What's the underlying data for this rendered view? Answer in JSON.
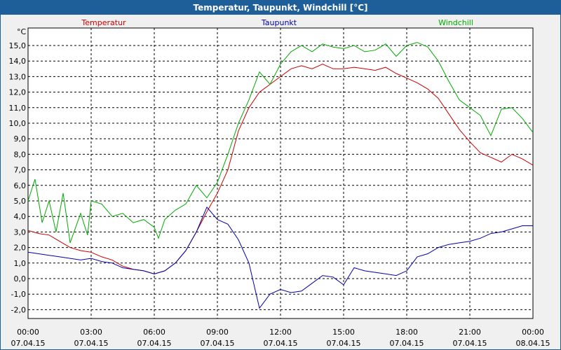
{
  "window": {
    "title": "Temperatur, Taupunkt, Windchill [°C]"
  },
  "colors": {
    "title_bar": "#1f5f99",
    "plot_bg": "#ffffff",
    "grid": "#000000",
    "temperatur": "#cc0000",
    "taupunkt": "#0000aa",
    "windchill": "#00aa00"
  },
  "chart_data": {
    "type": "line",
    "title": "Temperatur, Taupunkt, Windchill [°C]",
    "ylabel": "°C",
    "xlabel": "",
    "grid": true,
    "legend": "top",
    "xlim": [
      0,
      24
    ],
    "ylim": [
      -3,
      16
    ],
    "y_ticks": [
      "15,0",
      "14,0",
      "13,0",
      "12,0",
      "11,0",
      "10,0",
      "9,0",
      "8,0",
      "7,0",
      "6,0",
      "5,0",
      "4,0",
      "3,0",
      "2,0",
      "1,0",
      "0,0",
      "-1,0",
      "-2,0"
    ],
    "x_ticks": [
      {
        "time": "00:00",
        "date": "07.04.15"
      },
      {
        "time": "03:00",
        "date": "07.04.15"
      },
      {
        "time": "06:00",
        "date": "07.04.15"
      },
      {
        "time": "09:00",
        "date": "07.04.15"
      },
      {
        "time": "12:00",
        "date": "07.04.15"
      },
      {
        "time": "15:00",
        "date": "07.04.15"
      },
      {
        "time": "18:00",
        "date": "07.04.15"
      },
      {
        "time": "21:00",
        "date": "07.04.15"
      },
      {
        "time": "00:00",
        "date": "08.04.15"
      }
    ],
    "series": [
      {
        "name": "Temperatur",
        "x": [
          0,
          0.5,
          1,
          1.5,
          2,
          2.5,
          3,
          3.5,
          4,
          4.5,
          5,
          5.5,
          6,
          6.5,
          7,
          7.5,
          8,
          8.5,
          9,
          9.5,
          10,
          10.5,
          11,
          11.5,
          12,
          12.5,
          13,
          13.5,
          14,
          14.5,
          15,
          15.5,
          16,
          16.5,
          17,
          17.5,
          18,
          18.5,
          19,
          19.5,
          20,
          20.5,
          21,
          21.5,
          22,
          22.5,
          23,
          23.5,
          24
        ],
        "values": [
          3.1,
          2.9,
          2.8,
          2.4,
          2.0,
          1.8,
          1.7,
          1.4,
          1.2,
          0.8,
          0.6,
          0.5,
          0.3,
          0.5,
          1.0,
          1.8,
          3.0,
          4.3,
          5.5,
          7.0,
          9.5,
          11.0,
          12.0,
          12.5,
          13.0,
          13.5,
          13.7,
          13.5,
          13.8,
          13.5,
          13.5,
          13.6,
          13.5,
          13.4,
          13.6,
          13.2,
          12.9,
          12.6,
          12.2,
          11.6,
          10.6,
          9.6,
          8.8,
          8.1,
          7.8,
          7.5,
          8.0,
          7.7,
          7.3
        ]
      },
      {
        "name": "Taupunkt",
        "x": [
          0,
          0.5,
          1,
          1.5,
          2,
          2.5,
          3,
          3.5,
          4,
          4.5,
          5,
          5.5,
          6,
          6.5,
          7,
          7.5,
          8,
          8.5,
          9,
          9.5,
          10,
          10.5,
          11,
          11.5,
          12,
          12.5,
          13,
          13.5,
          14,
          14.5,
          15,
          15.5,
          16,
          16.5,
          17,
          17.5,
          18,
          18.5,
          19,
          19.5,
          20,
          20.5,
          21,
          21.5,
          22,
          22.5,
          23,
          23.5,
          24
        ],
        "values": [
          1.7,
          1.6,
          1.5,
          1.4,
          1.3,
          1.2,
          1.3,
          1.1,
          1.0,
          0.7,
          0.6,
          0.5,
          0.3,
          0.5,
          1.0,
          1.8,
          3.0,
          4.6,
          3.8,
          3.5,
          2.5,
          1.0,
          -1.9,
          -1.0,
          -0.7,
          -0.9,
          -0.8,
          -0.3,
          0.2,
          0.1,
          -0.4,
          0.7,
          0.5,
          0.4,
          0.3,
          0.2,
          0.5,
          1.4,
          1.6,
          2.0,
          2.2,
          2.3,
          2.4,
          2.6,
          2.9,
          3.0,
          3.2,
          3.4,
          3.4
        ]
      },
      {
        "name": "Windchill",
        "x": [
          0,
          0.33,
          0.67,
          1,
          1.33,
          1.67,
          2,
          2.5,
          2.83,
          3,
          3.5,
          4,
          4.5,
          5,
          5.5,
          6,
          6.2,
          6.5,
          7,
          7.5,
          8,
          8.5,
          9,
          9.5,
          10,
          10.5,
          11,
          11.5,
          12,
          12.5,
          13,
          13.5,
          14,
          14.5,
          15,
          15.5,
          16,
          16.5,
          17,
          17.5,
          18,
          18.5,
          19,
          19.5,
          20,
          20.5,
          21,
          21.5,
          22,
          22.5,
          23,
          23.5,
          24
        ],
        "values": [
          5.0,
          6.4,
          3.6,
          5.0,
          3.0,
          5.5,
          2.3,
          4.2,
          2.8,
          5.0,
          4.8,
          4.0,
          4.2,
          3.6,
          3.8,
          3.3,
          2.6,
          3.8,
          4.4,
          4.8,
          6.0,
          5.2,
          6.2,
          8.0,
          10.0,
          11.5,
          13.3,
          12.5,
          13.8,
          14.6,
          15.0,
          14.6,
          15.1,
          14.9,
          14.8,
          15.0,
          14.6,
          14.7,
          15.1,
          14.3,
          15.0,
          15.2,
          14.9,
          14.0,
          12.7,
          11.5,
          11.0,
          10.5,
          9.2,
          10.9,
          11.0,
          10.3,
          9.4
        ]
      }
    ]
  }
}
